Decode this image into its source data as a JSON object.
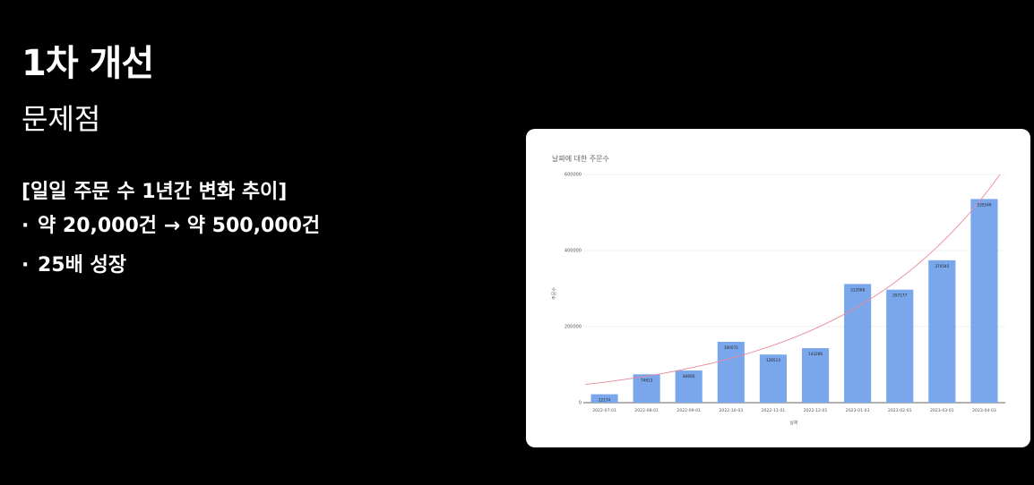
{
  "slide": {
    "title": "1차 개선",
    "subtitle": "문제점",
    "section": "[일일 주문 수 1년간 변화 추이]",
    "bullets": [
      "약 20,000건 → 약 500,000건",
      "25배 성장"
    ],
    "bullet_glyph": "·"
  },
  "chart_data": {
    "type": "bar",
    "title": "날짜에 대한 주문수",
    "xlabel": "날짜",
    "ylabel": "주문수",
    "categories": [
      "2022-07-01",
      "2022-08-01",
      "2022-09-01",
      "2022-10-03",
      "2022-11-01",
      "2022-12-01",
      "2023-01-03",
      "2023-02-01",
      "2023-03-01",
      "2023-04-03"
    ],
    "values": [
      22174,
      74613,
      84660,
      160072,
      126513,
      143286,
      312068,
      297177,
      374545,
      535549
    ],
    "yticks": [
      0,
      200000,
      400000,
      600000
    ],
    "ylim": [
      0,
      600000
    ],
    "grid": true,
    "trendline": {
      "type": "exponential",
      "start": 48000,
      "end": 600000
    },
    "colors": {
      "bar": "#7aa7ec",
      "trend": "#e98a9a",
      "grid": "#e6e6e6",
      "text": "#555555"
    }
  }
}
